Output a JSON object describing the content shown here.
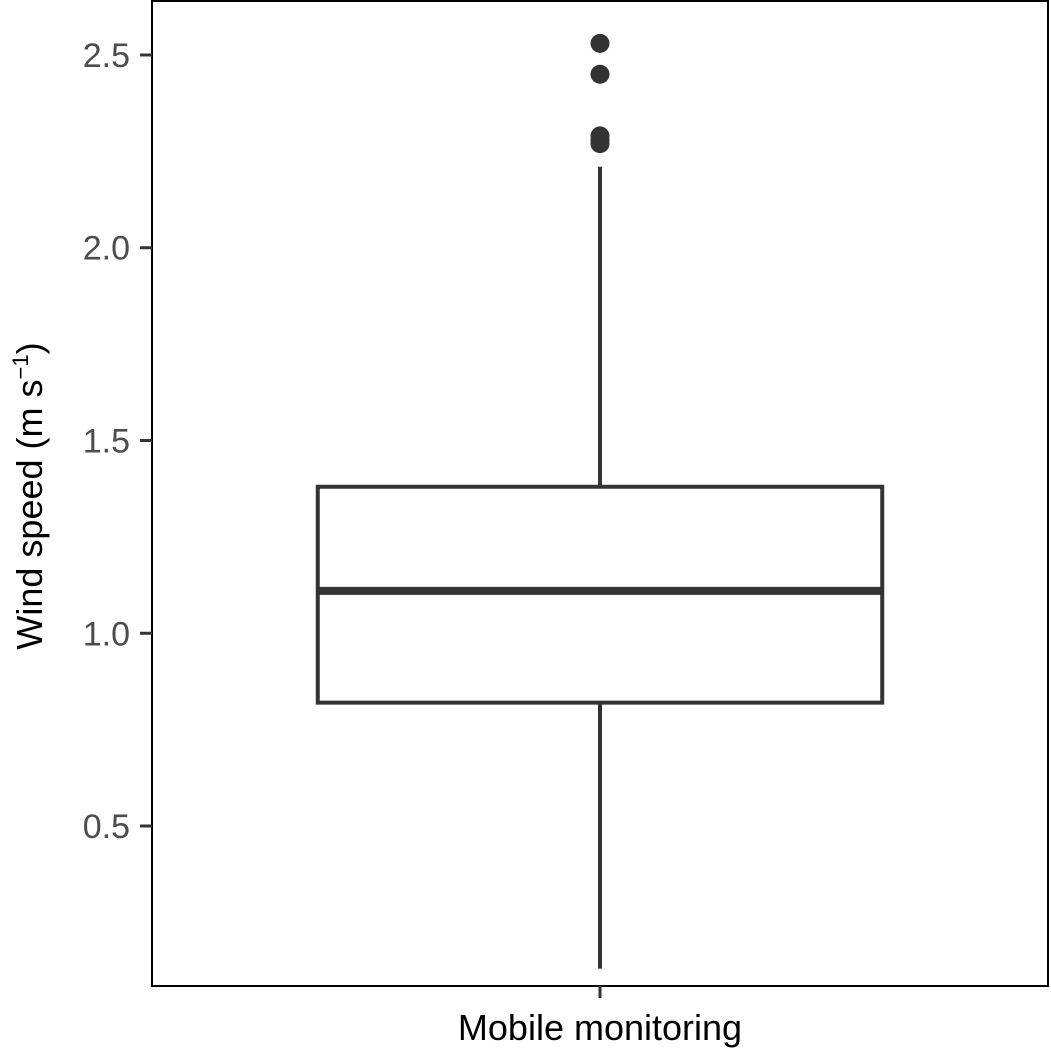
{
  "chart_data": {
    "type": "boxplot",
    "categories": [
      "Mobile monitoring"
    ],
    "ylabel_main": "Wind speed (m s",
    "ylabel_sup": "−1",
    "ylabel_close": ")",
    "xlabel": "",
    "ylim": [
      0.085,
      2.64
    ],
    "yticks": [
      {
        "value": 0.5,
        "label": "0.5"
      },
      {
        "value": 1.0,
        "label": "1.0"
      },
      {
        "value": 1.5,
        "label": "1.5"
      },
      {
        "value": 2.0,
        "label": "2.0"
      },
      {
        "value": 2.5,
        "label": "2.5"
      }
    ],
    "grid": false,
    "boxes": [
      {
        "category": "Mobile monitoring",
        "whisker_low": 0.13,
        "q1": 0.82,
        "median": 1.11,
        "q3": 1.38,
        "whisker_high": 2.21,
        "outliers": [
          2.53,
          2.45,
          2.29,
          2.28,
          2.27
        ]
      }
    ],
    "colors": {
      "box_stroke": "#333333",
      "axis": "#000000",
      "tick_text": "#4d4d4d"
    }
  }
}
